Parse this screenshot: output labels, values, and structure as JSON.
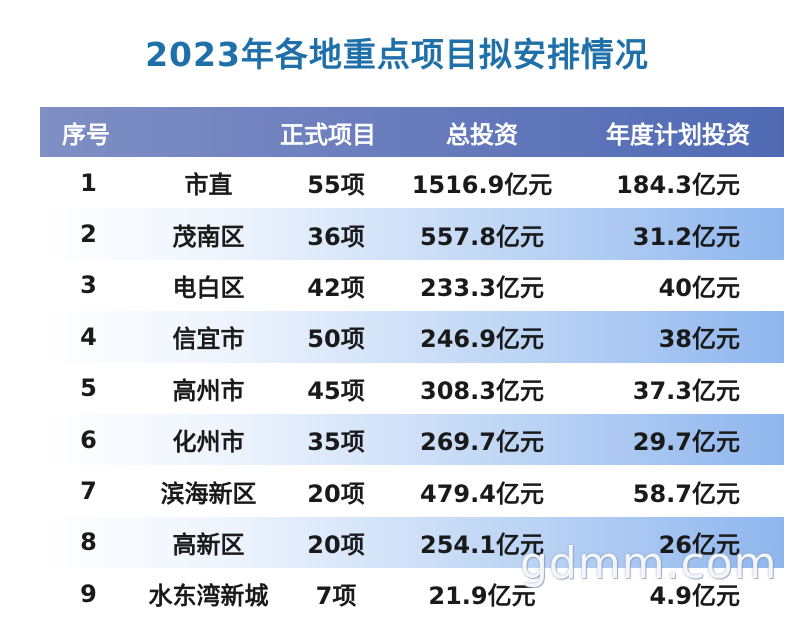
{
  "title": "2023年各地重点项目拟安排情况",
  "table": {
    "headers": [
      "序号",
      "正式项目",
      "总投资",
      "年度计划投资"
    ],
    "rows": [
      {
        "seq": "1",
        "name": "市直",
        "projects": "55项",
        "investment": "1516.9亿元",
        "plan": "184.3亿元"
      },
      {
        "seq": "2",
        "name": "茂南区",
        "projects": "36项",
        "investment": "557.8亿元",
        "plan": "31.2亿元"
      },
      {
        "seq": "3",
        "name": "电白区",
        "projects": "42项",
        "investment": "233.3亿元",
        "plan": "40亿元"
      },
      {
        "seq": "4",
        "name": "信宜市",
        "projects": "50项",
        "investment": "246.9亿元",
        "plan": "38亿元"
      },
      {
        "seq": "5",
        "name": "高州市",
        "projects": "45项",
        "investment": "308.3亿元",
        "plan": "37.3亿元"
      },
      {
        "seq": "6",
        "name": "化州市",
        "projects": "35项",
        "investment": "269.7亿元",
        "plan": "29.7亿元"
      },
      {
        "seq": "7",
        "name": "滨海新区",
        "projects": "20项",
        "investment": "479.4亿元",
        "plan": "58.7亿元"
      },
      {
        "seq": "8",
        "name": "高新区",
        "projects": "20项",
        "investment": "254.1亿元",
        "plan": "26亿元"
      },
      {
        "seq": "9",
        "name": "水东湾新城",
        "projects": "7项",
        "investment": "21.9亿元",
        "plan": "4.9亿元"
      }
    ]
  },
  "watermark": "gdmm.com"
}
